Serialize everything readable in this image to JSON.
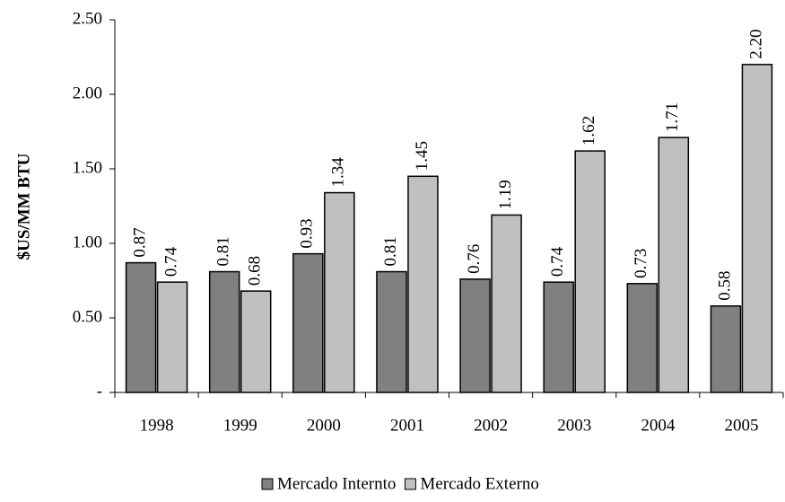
{
  "chart_data": {
    "type": "bar",
    "y_label": "$US/MM BTU",
    "categories": [
      "1998",
      "1999",
      "2000",
      "2001",
      "2002",
      "2003",
      "2004",
      "2005"
    ],
    "series": [
      {
        "name": "Mercado Internto",
        "color": "#808080",
        "values": [
          0.87,
          0.81,
          0.93,
          0.81,
          0.76,
          0.74,
          0.73,
          0.58
        ],
        "value_labels": [
          "0.87",
          "0.81",
          "0.93",
          "0.81",
          "0.76",
          "0.74",
          "0.73",
          "0.58"
        ]
      },
      {
        "name": "Mercado Externo",
        "color": "#c0c0c0",
        "values": [
          0.74,
          0.68,
          1.34,
          1.45,
          1.19,
          1.62,
          1.71,
          2.2
        ],
        "value_labels": [
          "0.74",
          "0.68",
          "1.34",
          "1.45",
          "1.19",
          "1.62",
          "1.71",
          "2.20"
        ]
      }
    ],
    "ylim": [
      0,
      2.5
    ],
    "yticks": [
      {
        "value": 0,
        "label": "-"
      },
      {
        "value": 0.5,
        "label": "0.50"
      },
      {
        "value": 1,
        "label": "1.00"
      },
      {
        "value": 1.5,
        "label": "1.50"
      },
      {
        "value": 2,
        "label": "2.00"
      },
      {
        "value": 2.5,
        "label": "2.50"
      }
    ],
    "grid": false,
    "legend": "bottom"
  }
}
